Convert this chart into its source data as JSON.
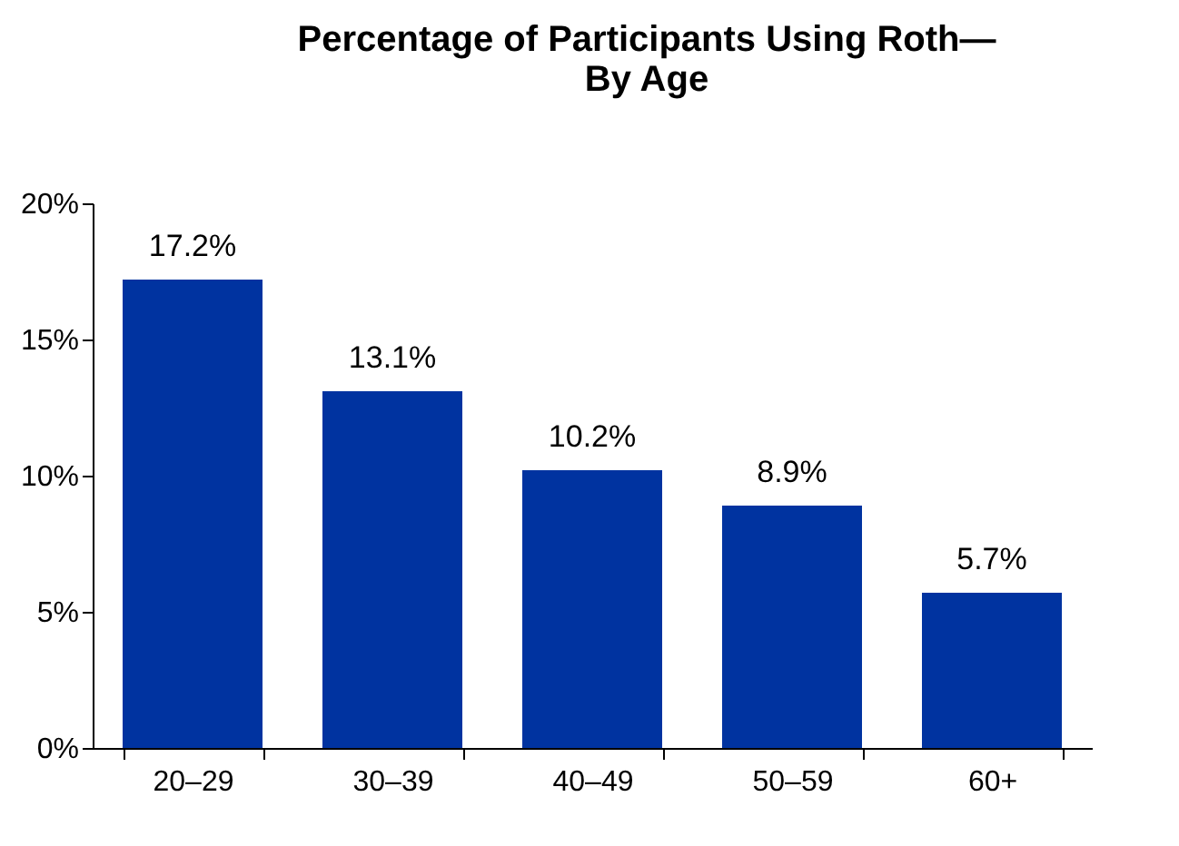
{
  "chart_data": {
    "type": "bar",
    "title": "Percentage of Participants Using Roth—\nBy Age",
    "categories": [
      "20–29",
      "30–39",
      "40–49",
      "50–59",
      "60+"
    ],
    "values": [
      17.2,
      13.1,
      10.2,
      8.9,
      5.7
    ],
    "value_labels": [
      "17.2%",
      "13.1%",
      "10.2%",
      "8.9%",
      "5.7%"
    ],
    "color": "#0033a0",
    "ylim": [
      0,
      20
    ],
    "yticks": [
      {
        "value": 0,
        "label": "0%"
      },
      {
        "value": 5,
        "label": "5%"
      },
      {
        "value": 10,
        "label": "10%"
      },
      {
        "value": 15,
        "label": "15%"
      },
      {
        "value": 20,
        "label": "20%"
      }
    ],
    "grid": false
  }
}
